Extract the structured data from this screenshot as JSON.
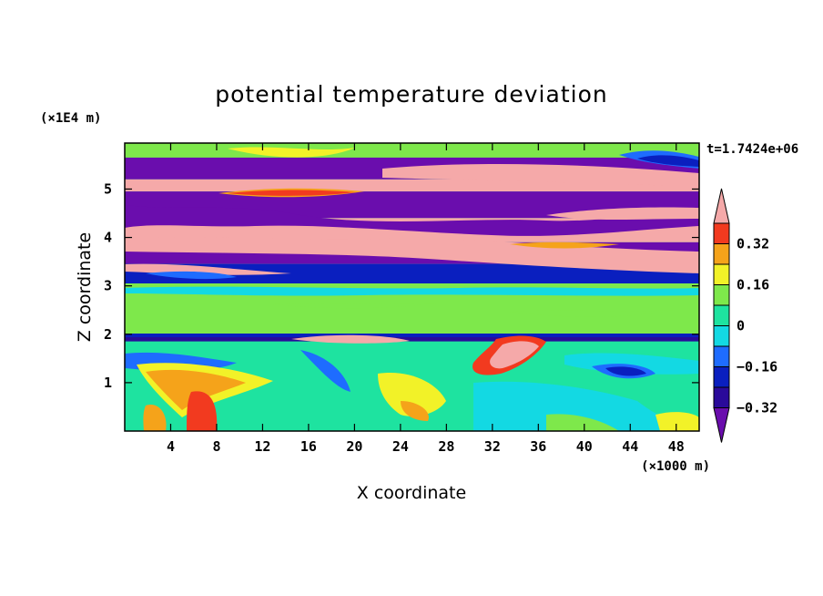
{
  "chart_data": {
    "type": "heatmap",
    "title": "potential temperature deviation",
    "xlabel": "X coordinate",
    "ylabel": "Z coordinate",
    "x_unit": "(×1000 m)",
    "y_unit": "(×1E4 m)",
    "time_label": "t=1.7424e+06",
    "xlim": [
      0,
      50
    ],
    "ylim": [
      0,
      5.95
    ],
    "x_ticks": [
      "4",
      "8",
      "12",
      "16",
      "20",
      "24",
      "28",
      "32",
      "36",
      "40",
      "44",
      "48"
    ],
    "y_ticks": [
      "1",
      "2",
      "3",
      "4",
      "5"
    ],
    "colorbar": {
      "levels": [
        -0.4,
        -0.32,
        -0.24,
        -0.16,
        -0.08,
        0,
        0.08,
        0.16,
        0.24,
        0.32,
        0.4
      ],
      "tick_labels": [
        "0.32",
        "0.16",
        "0",
        "−0.16",
        "−0.32"
      ],
      "colors": [
        "#6a0dad",
        "#2a0a9a",
        "#0a1fbf",
        "#1e6cff",
        "#13d9e3",
        "#1ee3a0",
        "#7ee84b",
        "#f2f228",
        "#f5a31a",
        "#f23a1f",
        "#f5a9a9"
      ],
      "extend": "both"
    },
    "bands": [
      {
        "z": [
          5.65,
          5.95
        ],
        "value": 0.02
      },
      {
        "z": [
          5.2,
          5.65
        ],
        "value": -0.4
      },
      {
        "z": [
          4.95,
          5.2
        ],
        "value": 0.4
      },
      {
        "z": [
          4.4,
          4.95
        ],
        "value": -0.4
      },
      {
        "z": [
          3.9,
          4.4
        ],
        "value": 0.4
      },
      {
        "z": [
          3.45,
          3.9
        ],
        "value": -0.4
      },
      {
        "z": [
          3.05,
          3.45
        ],
        "value": -0.3
      },
      {
        "z": [
          2.0,
          3.05
        ],
        "value": 0.05
      },
      {
        "z": [
          1.85,
          2.0
        ],
        "value": -0.35
      },
      {
        "z": [
          0.0,
          1.85
        ],
        "value": -0.05
      }
    ]
  }
}
